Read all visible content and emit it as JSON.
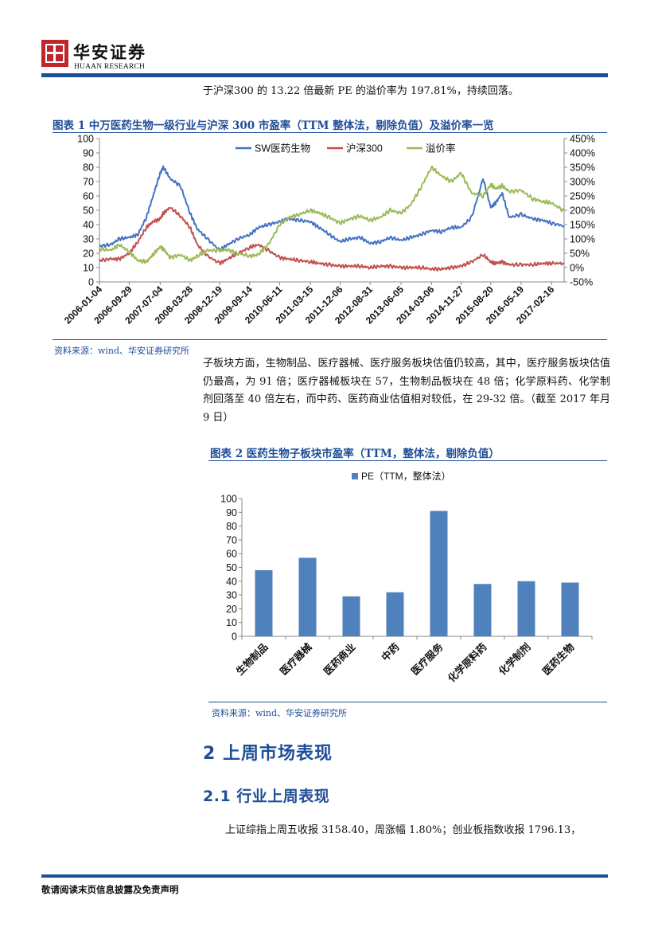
{
  "header": {
    "brand_cn": "华安证券",
    "brand_en": "HUAAN RESEARCH"
  },
  "intro_line": "于沪深300 的 13.22 倍最新 PE 的溢价率为 197.81%，持续回落。",
  "figure1": {
    "title": "图表 1 中万医药生物一级行业与沪深 300 市盈率（TTM 整体法，剔除负值）及溢价率一览",
    "source": "资料来源：wind、华安证券研究所"
  },
  "paragraph": "子板块方面，生物制品、医疗器械、医疗服务板块估值仍较高，其中，医疗服务板块估值仍最高，为 91 倍；医疗器械板块在 57，生物制品板块在 48 倍；化学原料药、化学制剂回落至 40 倍左右，而中药、医药商业估值相对较低，在 29-32 倍。（截至 2017 年月 9 日）",
  "figure2": {
    "title": "图表 2 医药生物子板块市盈率（TTM，整体法，剔除负值）",
    "source": "资料来源：wind、华安证券研究所"
  },
  "section_heading": "2 上周市场表现",
  "subsection_heading": "2.1 行业上周表现",
  "body_line": "上证综指上周五收报 3158.40，周涨幅 1.80%；创业板指数收报 1796.13，",
  "footer": "敬请阅读末页信息披露及免责声明",
  "colors": {
    "accent_blue": "#1f4e97",
    "brand_red": "#c0272d",
    "sw_series": "#4472c4",
    "hs300_series": "#c0504d",
    "premium_series": "#9bbb59",
    "bar": "#4f81bd"
  },
  "chart_data": [
    {
      "type": "line",
      "legend_position": "top",
      "grid": false,
      "x": [
        "2006-01-04",
        "2006-09-29",
        "2007-07-04",
        "2008-03-28",
        "2008-12-19",
        "2009-09-14",
        "2010-06-11",
        "2011-03-15",
        "2011-12-06",
        "2012-08-31",
        "2013-06-05",
        "2014-03-06",
        "2014-11-27",
        "2015-08-20",
        "2016-05-19",
        "2017-02-16"
      ],
      "x_end": "2017-06-09",
      "x_tick_labels": [
        "2006-01-04",
        "2006-09-29",
        "2007-07-04",
        "2008-03-28",
        "2008-12-19",
        "2009-09-14",
        "2010-06-11",
        "2011-03-15",
        "2011-12-06",
        "2012-08-31",
        "2013-06-05",
        "2014-03-06",
        "2014-11-27",
        "2015-08-20",
        "2016-05-19",
        "2017-02-16"
      ],
      "y_ticks_left": [
        "0",
        "10",
        "20",
        "30",
        "40",
        "50",
        "60",
        "70",
        "80",
        "90",
        "100"
      ],
      "y_ticks_right": [
        "-50%",
        "0%",
        "50%",
        "100%",
        "150%",
        "200%",
        "250%",
        "300%",
        "350%",
        "400%",
        "450%"
      ],
      "ylim_left": [
        0,
        100
      ],
      "ylim_right": [
        -50,
        450
      ],
      "series": [
        {
          "name": "SW医药生物",
          "axis": "left",
          "points": [
            [
              "2006-01-04",
              25
            ],
            [
              "2006-04-15",
              26
            ],
            [
              "2006-07-01",
              30
            ],
            [
              "2006-09-29",
              31
            ],
            [
              "2006-12-15",
              33
            ],
            [
              "2007-03-01",
              45
            ],
            [
              "2007-05-01",
              60
            ],
            [
              "2007-07-04",
              76
            ],
            [
              "2007-08-01",
              80
            ],
            [
              "2007-10-01",
              72
            ],
            [
              "2008-01-01",
              67
            ],
            [
              "2008-03-28",
              48
            ],
            [
              "2008-06-01",
              37
            ],
            [
              "2008-09-01",
              30
            ],
            [
              "2008-12-19",
              22
            ],
            [
              "2009-03-01",
              26
            ],
            [
              "2009-06-01",
              30
            ],
            [
              "2009-09-14",
              33
            ],
            [
              "2009-12-01",
              38
            ],
            [
              "2010-03-01",
              40
            ],
            [
              "2010-06-11",
              42
            ],
            [
              "2010-09-01",
              44
            ],
            [
              "2010-12-01",
              43
            ],
            [
              "2011-03-15",
              42
            ],
            [
              "2011-06-01",
              38
            ],
            [
              "2011-09-01",
              33
            ],
            [
              "2011-12-06",
              28
            ],
            [
              "2012-03-01",
              30
            ],
            [
              "2012-06-01",
              31
            ],
            [
              "2012-08-31",
              27
            ],
            [
              "2012-12-01",
              28
            ],
            [
              "2013-03-01",
              31
            ],
            [
              "2013-06-05",
              29
            ],
            [
              "2013-09-01",
              31
            ],
            [
              "2013-12-01",
              33
            ],
            [
              "2014-03-06",
              36
            ],
            [
              "2014-06-01",
              35
            ],
            [
              "2014-09-01",
              38
            ],
            [
              "2014-11-27",
              38
            ],
            [
              "2015-03-01",
              45
            ],
            [
              "2015-06-12",
              72
            ],
            [
              "2015-08-20",
              52
            ],
            [
              "2015-10-01",
              55
            ],
            [
              "2015-12-01",
              62
            ],
            [
              "2016-02-01",
              45
            ],
            [
              "2016-05-19",
              47
            ],
            [
              "2016-09-01",
              44
            ],
            [
              "2016-12-01",
              43
            ],
            [
              "2017-02-16",
              41
            ],
            [
              "2017-06-09",
              39
            ]
          ]
        },
        {
          "name": "沪深300",
          "axis": "left",
          "points": [
            [
              "2006-01-04",
              15
            ],
            [
              "2006-04-15",
              16
            ],
            [
              "2006-07-01",
              16
            ],
            [
              "2006-09-29",
              20
            ],
            [
              "2006-12-15",
              28
            ],
            [
              "2007-03-01",
              38
            ],
            [
              "2007-05-01",
              42
            ],
            [
              "2007-07-04",
              44
            ],
            [
              "2007-08-01",
              48
            ],
            [
              "2007-10-01",
              52
            ],
            [
              "2008-01-01",
              46
            ],
            [
              "2008-03-28",
              38
            ],
            [
              "2008-06-01",
              26
            ],
            [
              "2008-09-01",
              18
            ],
            [
              "2008-12-19",
              13
            ],
            [
              "2009-03-01",
              16
            ],
            [
              "2009-06-01",
              20
            ],
            [
              "2009-09-14",
              24
            ],
            [
              "2009-12-01",
              26
            ],
            [
              "2010-03-01",
              22
            ],
            [
              "2010-06-11",
              17
            ],
            [
              "2010-09-01",
              16
            ],
            [
              "2010-12-01",
              15
            ],
            [
              "2011-03-15",
              14
            ],
            [
              "2011-06-01",
              13
            ],
            [
              "2011-09-01",
              12
            ],
            [
              "2011-12-06",
              11
            ],
            [
              "2012-03-01",
              11
            ],
            [
              "2012-06-01",
              11
            ],
            [
              "2012-08-31",
              10
            ],
            [
              "2012-12-01",
              11
            ],
            [
              "2013-03-01",
              11
            ],
            [
              "2013-06-05",
              10
            ],
            [
              "2013-09-01",
              10
            ],
            [
              "2013-12-01",
              10
            ],
            [
              "2014-03-06",
              9
            ],
            [
              "2014-06-01",
              9
            ],
            [
              "2014-09-01",
              10
            ],
            [
              "2014-11-27",
              11
            ],
            [
              "2015-03-01",
              14
            ],
            [
              "2015-06-12",
              19
            ],
            [
              "2015-08-20",
              14
            ],
            [
              "2015-10-01",
              13
            ],
            [
              "2015-12-01",
              14
            ],
            [
              "2016-02-01",
              12
            ],
            [
              "2016-05-19",
              12
            ],
            [
              "2016-09-01",
              12
            ],
            [
              "2016-12-01",
              13
            ],
            [
              "2017-02-16",
              13
            ],
            [
              "2017-06-09",
              13
            ]
          ]
        },
        {
          "name": "溢价率",
          "axis": "right",
          "points": [
            [
              "2006-01-04",
              65
            ],
            [
              "2006-04-15",
              60
            ],
            [
              "2006-07-01",
              80
            ],
            [
              "2006-09-29",
              55
            ],
            [
              "2006-12-15",
              25
            ],
            [
              "2007-03-01",
              20
            ],
            [
              "2007-05-01",
              45
            ],
            [
              "2007-07-04",
              72
            ],
            [
              "2007-08-01",
              65
            ],
            [
              "2007-10-01",
              35
            ],
            [
              "2008-01-01",
              45
            ],
            [
              "2008-03-28",
              25
            ],
            [
              "2008-06-01",
              40
            ],
            [
              "2008-09-01",
              60
            ],
            [
              "2008-12-19",
              60
            ],
            [
              "2009-03-01",
              62
            ],
            [
              "2009-06-01",
              50
            ],
            [
              "2009-09-14",
              40
            ],
            [
              "2009-12-01",
              45
            ],
            [
              "2010-03-01",
              80
            ],
            [
              "2010-06-11",
              150
            ],
            [
              "2010-09-01",
              175
            ],
            [
              "2010-12-01",
              185
            ],
            [
              "2011-03-15",
              200
            ],
            [
              "2011-06-01",
              190
            ],
            [
              "2011-09-01",
              175
            ],
            [
              "2011-12-06",
              155
            ],
            [
              "2012-03-01",
              170
            ],
            [
              "2012-06-01",
              180
            ],
            [
              "2012-08-31",
              165
            ],
            [
              "2012-12-01",
              175
            ],
            [
              "2013-03-01",
              200
            ],
            [
              "2013-06-05",
              190
            ],
            [
              "2013-09-01",
              220
            ],
            [
              "2013-12-01",
              280
            ],
            [
              "2014-03-06",
              350
            ],
            [
              "2014-06-01",
              320
            ],
            [
              "2014-09-01",
              300
            ],
            [
              "2014-11-27",
              330
            ],
            [
              "2015-03-01",
              260
            ],
            [
              "2015-06-12",
              250
            ],
            [
              "2015-08-20",
              290
            ],
            [
              "2015-10-01",
              275
            ],
            [
              "2015-12-01",
              285
            ],
            [
              "2016-02-01",
              265
            ],
            [
              "2016-05-19",
              270
            ],
            [
              "2016-09-01",
              240
            ],
            [
              "2016-12-01",
              230
            ],
            [
              "2017-02-16",
              225
            ],
            [
              "2017-06-09",
              198
            ]
          ]
        }
      ]
    },
    {
      "type": "bar",
      "legend_position": "top",
      "grid": false,
      "series_name": "PE（TTM，整体法）",
      "categories": [
        "生物制品",
        "医疗器械",
        "医药商业",
        "中药",
        "医疗服务",
        "化学原料药",
        "化学制剂",
        "医药生物"
      ],
      "values": [
        48,
        57,
        29,
        32,
        91,
        38,
        40,
        39
      ],
      "y_ticks": [
        "0",
        "10",
        "20",
        "30",
        "40",
        "50",
        "60",
        "70",
        "80",
        "90",
        "100"
      ],
      "ylim": [
        0,
        100
      ]
    }
  ]
}
